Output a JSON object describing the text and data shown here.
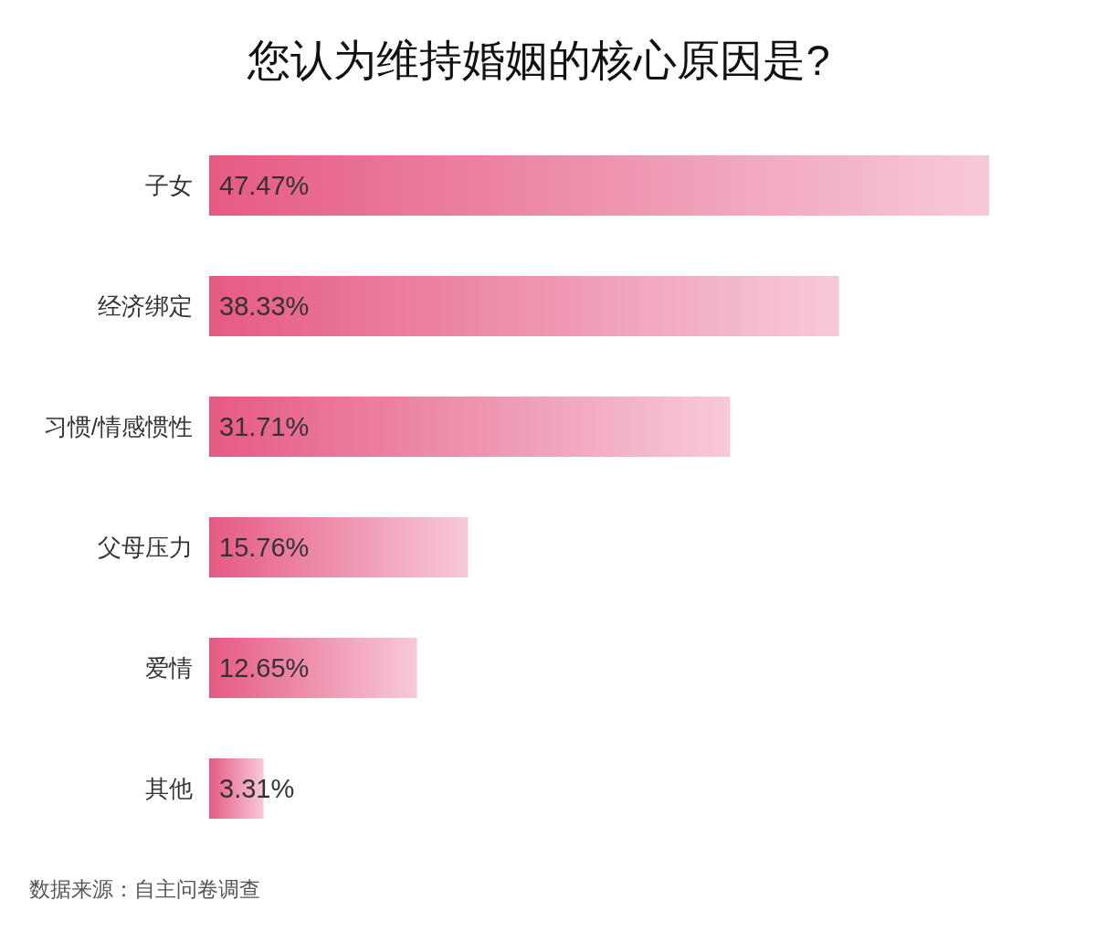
{
  "chart_data": {
    "type": "bar",
    "orientation": "horizontal",
    "title": "您认为维持婚姻的核心原因是?",
    "categories": [
      "子女",
      "经济绑定",
      "习惯/情感惯性",
      "父母压力",
      "爱情",
      "其他"
    ],
    "values": [
      47.47,
      38.33,
      31.71,
      15.76,
      12.65,
      3.31
    ],
    "value_labels": [
      "47.47%",
      "38.33%",
      "31.71%",
      "15.76%",
      "12.65%",
      "3.31%"
    ],
    "color": "#e65a84",
    "annotations": [
      "数据来源：自主问卷调查"
    ]
  }
}
